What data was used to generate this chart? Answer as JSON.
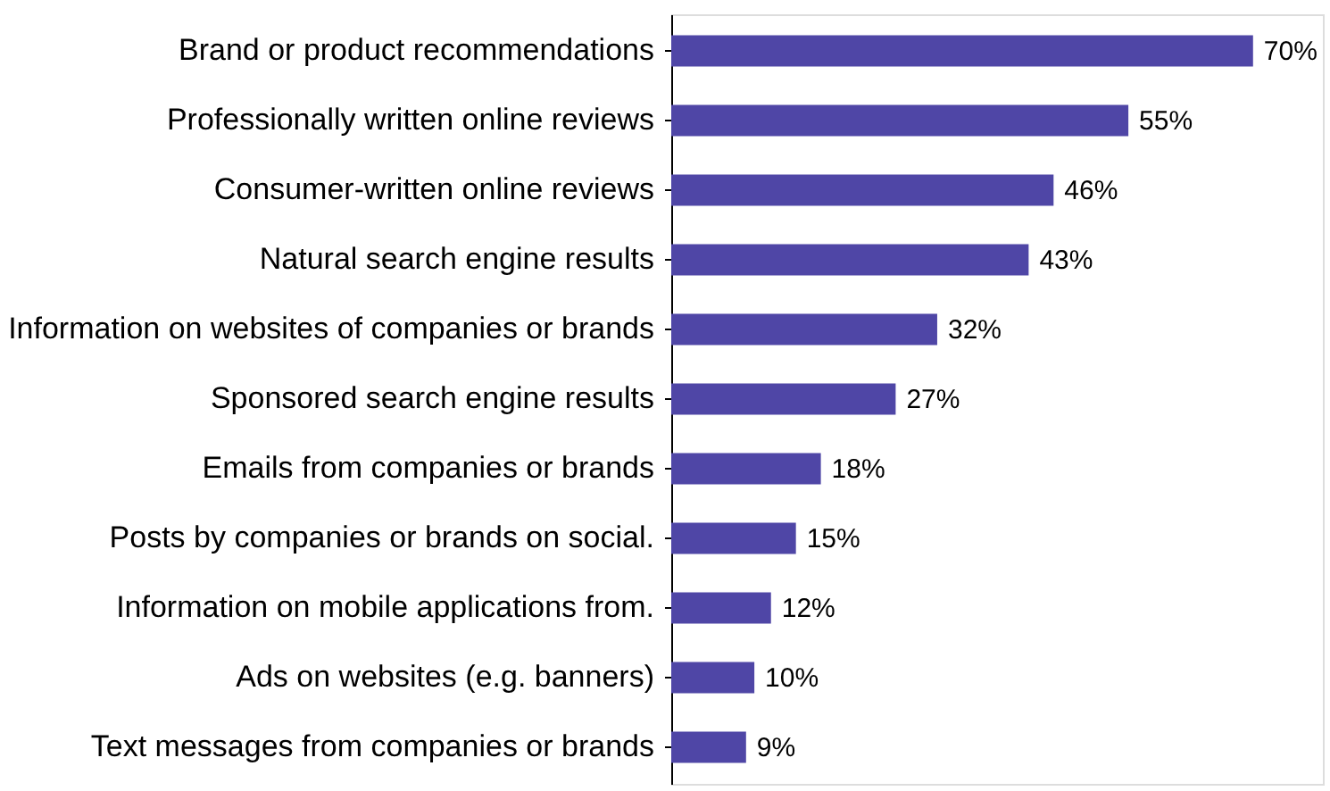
{
  "chart_data": {
    "type": "bar",
    "orientation": "horizontal",
    "categories": [
      "Brand or product recommendations",
      "Professionally written online reviews",
      "Consumer-written online reviews",
      "Natural search engine results",
      "Information on websites of companies or brands",
      "Sponsored search engine results",
      "Emails from companies or brands",
      "Posts by companies or brands on social.",
      "Information on mobile applications from.",
      "Ads on websites (e.g. banners)",
      "Text messages from companies or brands"
    ],
    "values": [
      70,
      55,
      46,
      43,
      32,
      27,
      18,
      15,
      12,
      10,
      9
    ],
    "value_labels": [
      "70%",
      "55%",
      "46%",
      "43%",
      "32%",
      "27%",
      "18%",
      "15%",
      "12%",
      "10%",
      "9%"
    ],
    "color": "#4f46a6",
    "grid": false,
    "tick_labels": "y"
  }
}
